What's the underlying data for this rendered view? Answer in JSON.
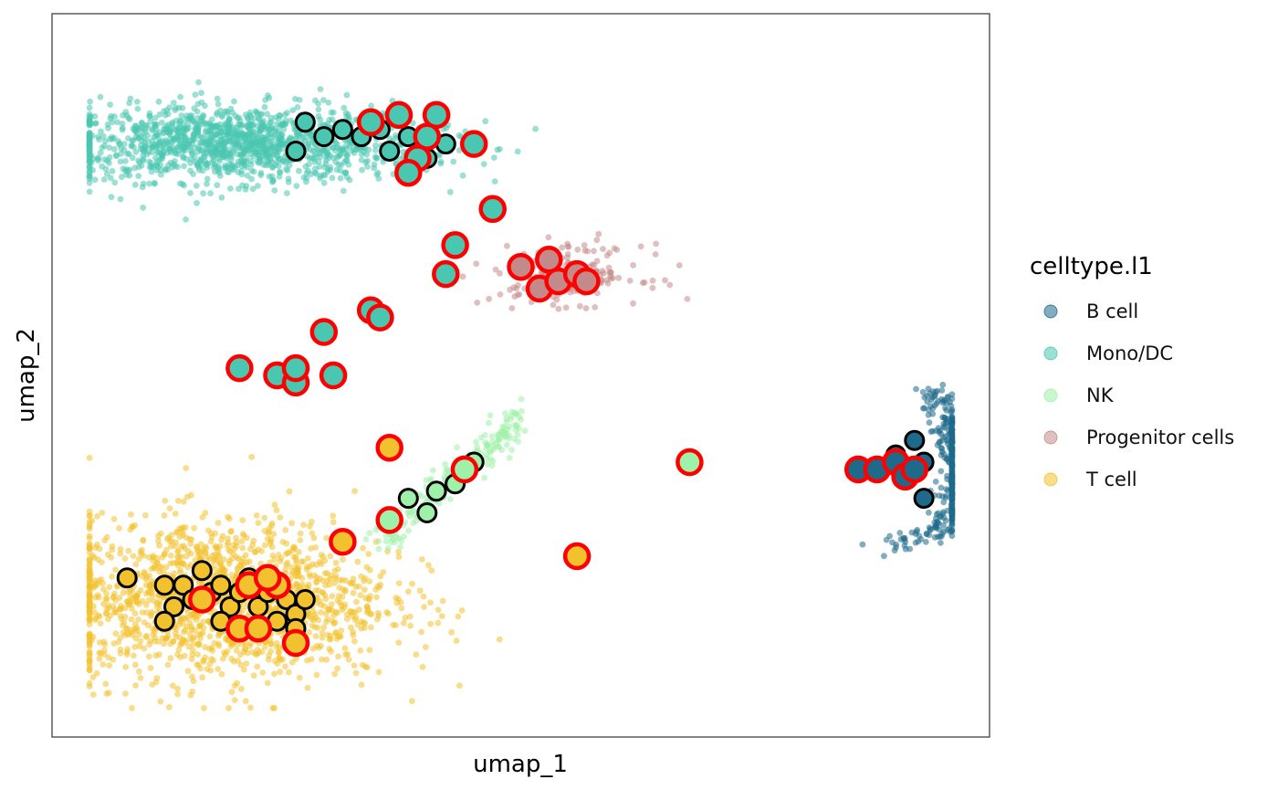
{
  "chart_data": {
    "type": "scatter",
    "xlabel": "umap_1",
    "ylabel": "umap_2",
    "xlim": [
      0,
      100
    ],
    "ylim": [
      0,
      100
    ],
    "grid": false,
    "legend": {
      "title": "celltype.l1",
      "placement": "right",
      "entries": [
        {
          "name": "B cell",
          "color": "#1d6a8b"
        },
        {
          "name": "Mono/DC",
          "color": "#4ac7b1"
        },
        {
          "name": "NK",
          "color": "#9ff0a8"
        },
        {
          "name": "Progenitor cells",
          "color": "#c48a8a"
        },
        {
          "name": "T cell",
          "color": "#f2c12e"
        }
      ]
    },
    "clusters": [
      {
        "name": "Mono/DC",
        "color": "#4ac7b1",
        "n": 1400,
        "center": [
          20,
          82
        ],
        "spread": [
          10,
          2.6
        ],
        "shape": "blob"
      },
      {
        "name": "T cell",
        "color": "#f2c12e",
        "n": 1600,
        "center": [
          18,
          19
        ],
        "spread": [
          9,
          5.5
        ],
        "shape": "blob"
      },
      {
        "name": "Progenitor cells",
        "color": "#c48a8a",
        "n": 180,
        "center": [
          55,
          64
        ],
        "spread": [
          4,
          2
        ],
        "shape": "blob"
      },
      {
        "name": "NK",
        "color": "#9ff0a8",
        "n": 220,
        "from": [
          35,
          27
        ],
        "to": [
          50,
          44
        ],
        "spread": 1.2,
        "shape": "streak"
      },
      {
        "name": "B cell",
        "color": "#1d6a8b",
        "n": 350,
        "center": [
          94,
          37
        ],
        "spread": [
          2,
          7
        ],
        "shape": "crescent"
      }
    ],
    "highlighted_cells": [
      {
        "x": 27,
        "y": 85,
        "type": "Mono/DC",
        "ring": "black"
      },
      {
        "x": 29,
        "y": 83,
        "type": "Mono/DC",
        "ring": "black"
      },
      {
        "x": 31,
        "y": 84,
        "type": "Mono/DC",
        "ring": "black"
      },
      {
        "x": 33,
        "y": 83,
        "type": "Mono/DC",
        "ring": "black"
      },
      {
        "x": 35,
        "y": 84,
        "type": "Mono/DC",
        "ring": "black"
      },
      {
        "x": 36,
        "y": 81,
        "type": "Mono/DC",
        "ring": "black"
      },
      {
        "x": 38,
        "y": 83,
        "type": "Mono/DC",
        "ring": "black"
      },
      {
        "x": 40,
        "y": 80,
        "type": "Mono/DC",
        "ring": "black"
      },
      {
        "x": 42,
        "y": 82,
        "type": "Mono/DC",
        "ring": "black"
      },
      {
        "x": 26,
        "y": 81,
        "type": "Mono/DC",
        "ring": "black"
      },
      {
        "x": 34,
        "y": 85,
        "type": "Mono/DC",
        "ring": "red"
      },
      {
        "x": 37,
        "y": 86,
        "type": "Mono/DC",
        "ring": "red"
      },
      {
        "x": 41,
        "y": 86,
        "type": "Mono/DC",
        "ring": "red"
      },
      {
        "x": 40,
        "y": 83,
        "type": "Mono/DC",
        "ring": "red"
      },
      {
        "x": 45,
        "y": 82,
        "type": "Mono/DC",
        "ring": "red"
      },
      {
        "x": 39,
        "y": 80,
        "type": "Mono/DC",
        "ring": "red"
      },
      {
        "x": 38,
        "y": 78,
        "type": "Mono/DC",
        "ring": "red"
      },
      {
        "x": 47,
        "y": 73,
        "type": "Mono/DC",
        "ring": "red"
      },
      {
        "x": 43,
        "y": 68,
        "type": "Mono/DC",
        "ring": "red"
      },
      {
        "x": 42,
        "y": 64,
        "type": "Mono/DC",
        "ring": "red"
      },
      {
        "x": 34,
        "y": 59,
        "type": "Mono/DC",
        "ring": "red"
      },
      {
        "x": 35,
        "y": 58,
        "type": "Mono/DC",
        "ring": "red"
      },
      {
        "x": 29,
        "y": 56,
        "type": "Mono/DC",
        "ring": "red"
      },
      {
        "x": 20,
        "y": 51,
        "type": "Mono/DC",
        "ring": "red"
      },
      {
        "x": 24,
        "y": 50,
        "type": "Mono/DC",
        "ring": "red"
      },
      {
        "x": 26,
        "y": 49,
        "type": "Mono/DC",
        "ring": "red"
      },
      {
        "x": 30,
        "y": 50,
        "type": "Mono/DC",
        "ring": "red"
      },
      {
        "x": 26,
        "y": 51,
        "type": "Mono/DC",
        "ring": "red"
      },
      {
        "x": 52,
        "y": 62,
        "type": "Progenitor cells",
        "ring": "black"
      },
      {
        "x": 53,
        "y": 66,
        "type": "Progenitor cells",
        "ring": "red"
      },
      {
        "x": 50,
        "y": 65,
        "type": "Progenitor cells",
        "ring": "red"
      },
      {
        "x": 52,
        "y": 62,
        "type": "Progenitor cells",
        "ring": "red"
      },
      {
        "x": 54,
        "y": 63,
        "type": "Progenitor cells",
        "ring": "red"
      },
      {
        "x": 56,
        "y": 64,
        "type": "Progenitor cells",
        "ring": "red"
      },
      {
        "x": 57,
        "y": 63,
        "type": "Progenitor cells",
        "ring": "red"
      },
      {
        "x": 45,
        "y": 38,
        "type": "NK",
        "ring": "black"
      },
      {
        "x": 43,
        "y": 35,
        "type": "NK",
        "ring": "black"
      },
      {
        "x": 41,
        "y": 34,
        "type": "NK",
        "ring": "black"
      },
      {
        "x": 38,
        "y": 33,
        "type": "NK",
        "ring": "black"
      },
      {
        "x": 40,
        "y": 31,
        "type": "NK",
        "ring": "black"
      },
      {
        "x": 44,
        "y": 37,
        "type": "NK",
        "ring": "red"
      },
      {
        "x": 36,
        "y": 30,
        "type": "NK",
        "ring": "red"
      },
      {
        "x": 68,
        "y": 38,
        "type": "NK",
        "ring": "red"
      },
      {
        "x": 36,
        "y": 40,
        "type": "T cell",
        "ring": "red"
      },
      {
        "x": 31,
        "y": 27,
        "type": "T cell",
        "ring": "red"
      },
      {
        "x": 56,
        "y": 25,
        "type": "T cell",
        "ring": "red"
      },
      {
        "x": 8,
        "y": 22,
        "type": "T cell",
        "ring": "black"
      },
      {
        "x": 12,
        "y": 21,
        "type": "T cell",
        "ring": "black"
      },
      {
        "x": 14,
        "y": 21,
        "type": "T cell",
        "ring": "black"
      },
      {
        "x": 15,
        "y": 19,
        "type": "T cell",
        "ring": "black"
      },
      {
        "x": 16,
        "y": 23,
        "type": "T cell",
        "ring": "black"
      },
      {
        "x": 17,
        "y": 20,
        "type": "T cell",
        "ring": "black"
      },
      {
        "x": 18,
        "y": 21,
        "type": "T cell",
        "ring": "black"
      },
      {
        "x": 19,
        "y": 18,
        "type": "T cell",
        "ring": "black"
      },
      {
        "x": 20,
        "y": 20,
        "type": "T cell",
        "ring": "black"
      },
      {
        "x": 21,
        "y": 22,
        "type": "T cell",
        "ring": "black"
      },
      {
        "x": 22,
        "y": 18,
        "type": "T cell",
        "ring": "black"
      },
      {
        "x": 23,
        "y": 20,
        "type": "T cell",
        "ring": "black"
      },
      {
        "x": 24,
        "y": 16,
        "type": "T cell",
        "ring": "black"
      },
      {
        "x": 25,
        "y": 19,
        "type": "T cell",
        "ring": "black"
      },
      {
        "x": 26,
        "y": 17,
        "type": "T cell",
        "ring": "black"
      },
      {
        "x": 27,
        "y": 19,
        "type": "T cell",
        "ring": "black"
      },
      {
        "x": 26,
        "y": 15,
        "type": "T cell",
        "ring": "black"
      },
      {
        "x": 13,
        "y": 18,
        "type": "T cell",
        "ring": "black"
      },
      {
        "x": 12,
        "y": 16,
        "type": "T cell",
        "ring": "black"
      },
      {
        "x": 18,
        "y": 16,
        "type": "T cell",
        "ring": "black"
      },
      {
        "x": 20,
        "y": 15,
        "type": "T cell",
        "ring": "red"
      },
      {
        "x": 22,
        "y": 15,
        "type": "T cell",
        "ring": "red"
      },
      {
        "x": 21,
        "y": 21,
        "type": "T cell",
        "ring": "red"
      },
      {
        "x": 24,
        "y": 21,
        "type": "T cell",
        "ring": "red"
      },
      {
        "x": 16,
        "y": 19,
        "type": "T cell",
        "ring": "red"
      },
      {
        "x": 26,
        "y": 13,
        "type": "T cell",
        "ring": "red"
      },
      {
        "x": 23,
        "y": 22,
        "type": "T cell",
        "ring": "red"
      },
      {
        "x": 90,
        "y": 39,
        "type": "B cell",
        "ring": "black"
      },
      {
        "x": 91,
        "y": 37,
        "type": "B cell",
        "ring": "black"
      },
      {
        "x": 93,
        "y": 38,
        "type": "B cell",
        "ring": "black"
      },
      {
        "x": 92,
        "y": 41,
        "type": "B cell",
        "ring": "black"
      },
      {
        "x": 93,
        "y": 33,
        "type": "B cell",
        "ring": "black"
      },
      {
        "x": 91,
        "y": 36,
        "type": "B cell",
        "ring": "black"
      },
      {
        "x": 86,
        "y": 37,
        "type": "B cell",
        "ring": "red"
      },
      {
        "x": 88,
        "y": 37,
        "type": "B cell",
        "ring": "red"
      },
      {
        "x": 90,
        "y": 38,
        "type": "B cell",
        "ring": "red"
      },
      {
        "x": 91,
        "y": 36,
        "type": "B cell",
        "ring": "red"
      },
      {
        "x": 92,
        "y": 37,
        "type": "B cell",
        "ring": "red"
      }
    ]
  }
}
